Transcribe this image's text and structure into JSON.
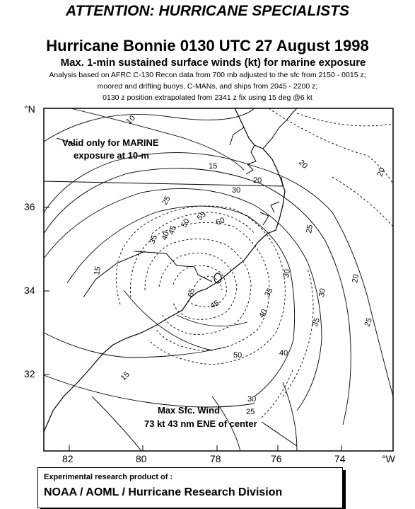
{
  "header": {
    "attention": "ATTENTION: HURRICANE SPECIALISTS",
    "title": "Hurricane Bonnie 0130 UTC 27 August 1998",
    "subtitle": "Max. 1-min sustained surface winds (kt) for marine exposure",
    "notes": [
      "Analysis based on  AFRC C-130 Recon data from 700 mb adjusted to the sfc from 2150 - 0015 z;",
      "moored and drifting buoys, C-MANs, and ships from 2045 - 2200 z;",
      "0130 z position extrapolated from 2341 z fix using  15 deg @6 kt"
    ]
  },
  "map": {
    "lat_unit": "°N",
    "lon_unit": "°W",
    "lat_ticks": [
      "36",
      "34",
      "32"
    ],
    "lon_ticks": [
      "82",
      "80",
      "78",
      "76",
      "74"
    ],
    "valid_note": [
      "Valid only for MARINE",
      "exposure at 10-m"
    ],
    "max_wind": [
      "Max Sfc. Wind",
      "73 kt  43 nm  ENE  of center"
    ],
    "contour_labels": [
      "10",
      "15",
      "20",
      "25",
      "30",
      "35",
      "40",
      "45",
      "50",
      "55",
      "60",
      "65",
      "15",
      "20",
      "25",
      "30",
      "35",
      "40",
      "45",
      "50",
      "20",
      "25",
      "30",
      "35",
      "40",
      "25",
      "30",
      "20",
      "15"
    ]
  },
  "footer": {
    "small": "Experimental research product of :",
    "big": "NOAA / AOML / Hurricane Research Division"
  }
}
